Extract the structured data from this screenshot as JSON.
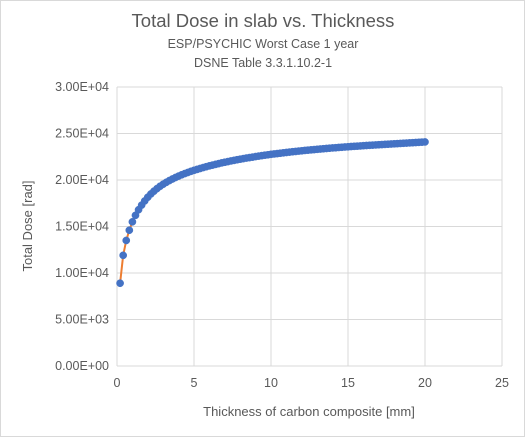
{
  "chart_data": {
    "type": "scatter",
    "title": "Total Dose in slab vs. Thickness",
    "subtitle_lines": [
      "ESP/PSYCHIC Worst Case 1 year",
      "DSNE Table 3.3.1.10.2-1"
    ],
    "xlabel": "Thickness of carbon composite [mm]",
    "ylabel": "Total Dose [rad]",
    "xlim": [
      0,
      25
    ],
    "ylim": [
      0,
      30000
    ],
    "x_ticks": [
      0,
      5,
      10,
      15,
      20,
      25
    ],
    "x_tick_labels": [
      "0",
      "5",
      "10",
      "15",
      "20",
      "25"
    ],
    "y_ticks": [
      0,
      5000,
      10000,
      15000,
      20000,
      25000,
      30000
    ],
    "y_tick_labels": [
      "0.00E+00",
      "5.00E+03",
      "1.00E+04",
      "1.50E+04",
      "2.00E+04",
      "2.50E+04",
      "3.00E+04"
    ],
    "grid": true,
    "legend": "none",
    "series": [
      {
        "color": "#4472c4",
        "line_color": "#ed7d31",
        "x": [
          0.2,
          0.4,
          0.6,
          0.8,
          1.0,
          1.2,
          1.4,
          1.6,
          1.8,
          2.0,
          2.2,
          2.4,
          2.6,
          2.8,
          3.0,
          3.2,
          3.4,
          3.6,
          3.8,
          4.0,
          4.2,
          4.4,
          4.6,
          4.8,
          5.0,
          5.2,
          5.4,
          5.6,
          5.8,
          6.0,
          6.2,
          6.4,
          6.6,
          6.8,
          7.0,
          7.2,
          7.4,
          7.6,
          7.8,
          8.0,
          8.2,
          8.4,
          8.6,
          8.8,
          9.0,
          9.2,
          9.4,
          9.6,
          9.8,
          10.0,
          10.2,
          10.4,
          10.6,
          10.8,
          11.0,
          11.2,
          11.4,
          11.6,
          11.8,
          12.0,
          12.2,
          12.4,
          12.6,
          12.8,
          13.0,
          13.2,
          13.4,
          13.6,
          13.8,
          14.0,
          14.2,
          14.4,
          14.6,
          14.8,
          15.0,
          15.2,
          15.4,
          15.6,
          15.8,
          16.0,
          16.2,
          16.4,
          16.6,
          16.8,
          17.0,
          17.2,
          17.4,
          17.6,
          17.8,
          18.0,
          18.2,
          18.4,
          18.6,
          18.8,
          19.0,
          19.2,
          19.4,
          19.6,
          19.8,
          20.0
        ],
        "y": [
          8900,
          11900,
          13500,
          14600,
          15500,
          16200,
          16800,
          17300,
          17750,
          18150,
          18500,
          18800,
          19080,
          19330,
          19550,
          19750,
          19940,
          20110,
          20270,
          20420,
          20560,
          20690,
          20810,
          20930,
          21040,
          21140,
          21240,
          21340,
          21430,
          21520,
          21600,
          21680,
          21760,
          21840,
          21910,
          21980,
          22050,
          22110,
          22180,
          22240,
          22300,
          22360,
          22410,
          22460,
          22520,
          22570,
          22620,
          22670,
          22710,
          22760,
          22800,
          22840,
          22880,
          22920,
          22960,
          23000,
          23040,
          23070,
          23110,
          23140,
          23180,
          23210,
          23240,
          23270,
          23300,
          23330,
          23360,
          23390,
          23420,
          23450,
          23470,
          23500,
          23520,
          23550,
          23570,
          23600,
          23620,
          23640,
          23660,
          23690,
          23710,
          23730,
          23750,
          23770,
          23790,
          23810,
          23830,
          23850,
          23870,
          23890,
          23910,
          23930,
          23950,
          23970,
          23990,
          24010,
          24030,
          24050,
          24070,
          24090
        ]
      }
    ]
  }
}
